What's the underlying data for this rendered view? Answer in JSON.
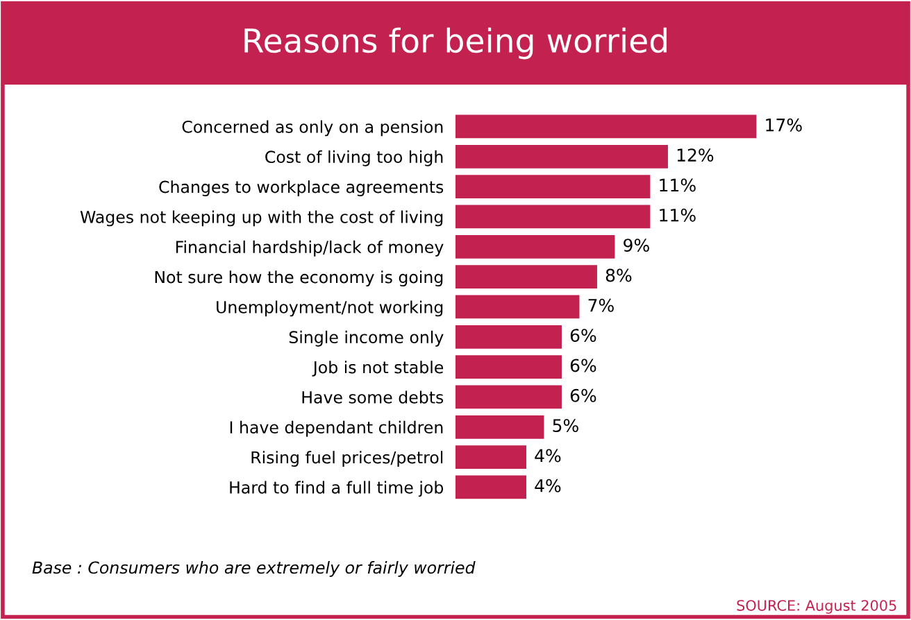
{
  "chart_data": {
    "type": "bar",
    "orientation": "horizontal",
    "title": "Reasons for being worried",
    "categories": [
      "Concerned as only on a pension",
      "Cost of living too high",
      "Changes to workplace agreements",
      "Wages not keeping up with the cost of living",
      "Financial hardship/lack of money",
      "Not sure how the economy is going",
      "Unemployment/not working",
      "Single income only",
      "Job is not stable",
      "Have some debts",
      "I have dependant children",
      "Rising fuel prices/petrol",
      "Hard to find a full time job"
    ],
    "values": [
      17,
      12,
      11,
      11,
      9,
      8,
      7,
      6,
      6,
      6,
      5,
      4,
      4
    ],
    "value_labels": [
      "17%",
      "12%",
      "11%",
      "11%",
      "9%",
      "8%",
      "7%",
      "6%",
      "6%",
      "6%",
      "5%",
      "4%",
      "4%"
    ],
    "color": "#c3214f",
    "grid": false,
    "legend": false,
    "annotations": [
      "Base : Consumers who are extremely or fairly worried",
      "SOURCE: August 2005"
    ]
  }
}
